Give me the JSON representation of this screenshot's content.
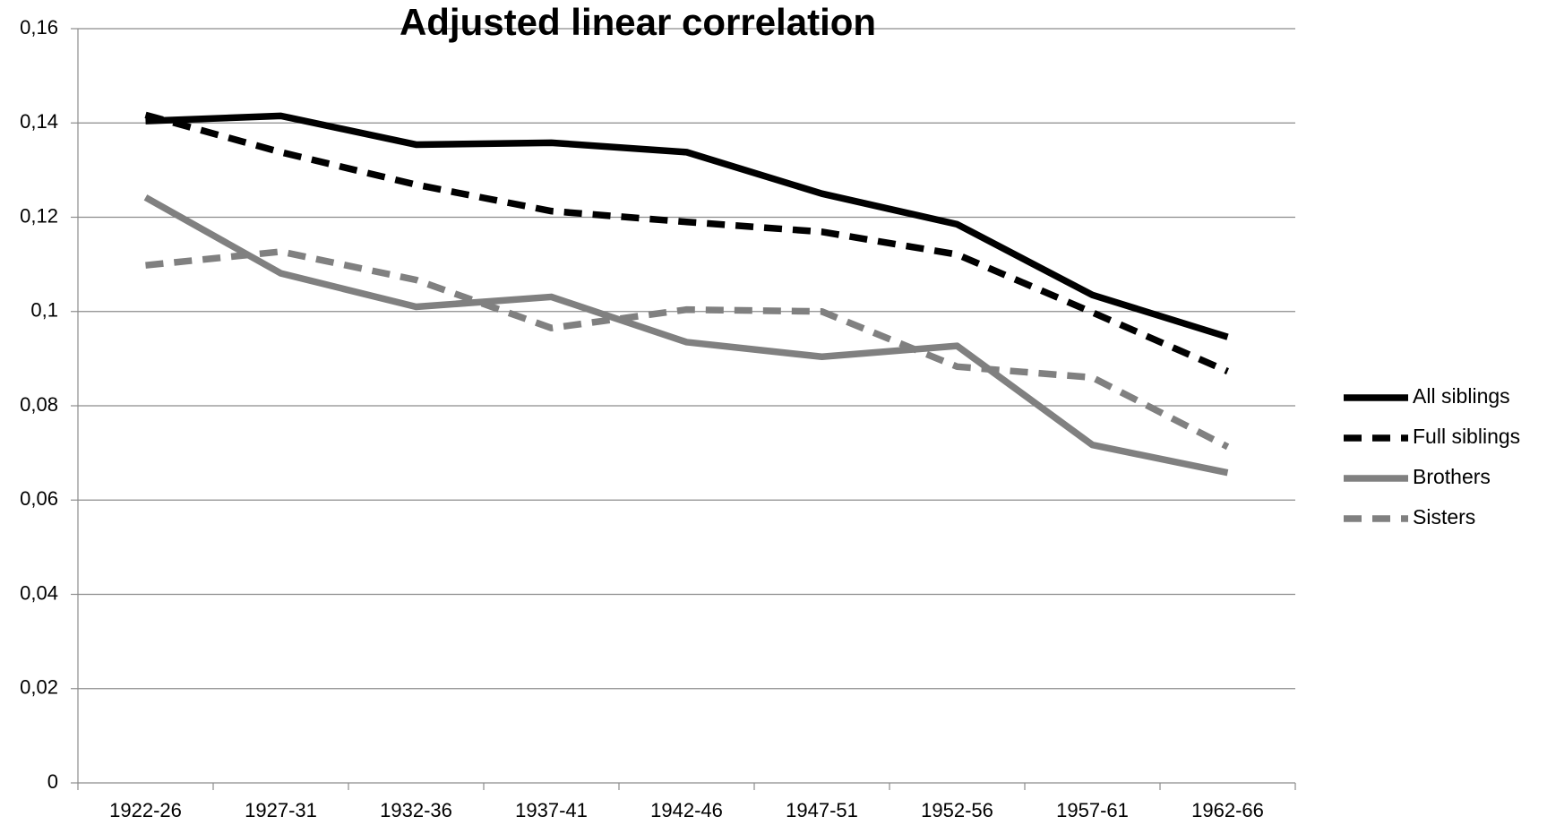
{
  "chart_data": {
    "type": "line",
    "title": "Adjusted linear correlation",
    "categories": [
      "1922-26",
      "1927-31",
      "1932-36",
      "1937-41",
      "1942-46",
      "1947-51",
      "1952-56",
      "1957-61",
      "1962-66"
    ],
    "series": [
      {
        "name": "All siblings",
        "color": "#000000",
        "dashed": false,
        "values": [
          0.1404,
          0.1415,
          0.1354,
          0.1358,
          0.1338,
          0.125,
          0.1185,
          0.1035,
          0.0946
        ]
      },
      {
        "name": "Full siblings",
        "color": "#000000",
        "dashed": true,
        "values": [
          0.1417,
          0.1338,
          0.1269,
          0.1213,
          0.119,
          0.1169,
          0.1121,
          0.0998,
          0.0873
        ]
      },
      {
        "name": "Brothers",
        "color": "#808080",
        "dashed": false,
        "values": [
          0.1242,
          0.1081,
          0.101,
          0.1031,
          0.0935,
          0.0904,
          0.0927,
          0.0717,
          0.0658
        ]
      },
      {
        "name": "Sisters",
        "color": "#808080",
        "dashed": true,
        "values": [
          0.1098,
          0.1127,
          0.1067,
          0.0965,
          0.1004,
          0.1,
          0.0883,
          0.086,
          0.0713
        ]
      }
    ],
    "ylim": [
      0,
      0.16
    ],
    "yticks": [
      0,
      {
        "value": 0.02,
        "label": "0,02"
      },
      {
        "value": 0.04,
        "label": "0,04"
      },
      {
        "value": 0.06,
        "label": "0,06"
      },
      {
        "value": 0.08,
        "label": "0,08"
      },
      {
        "value": 0.1,
        "label": "0,1"
      },
      {
        "value": 0.12,
        "label": "0,12"
      },
      {
        "value": 0.14,
        "label": "0,14"
      },
      {
        "value": 0.16,
        "label": "0,16"
      }
    ],
    "grid": true,
    "legend": "right"
  }
}
